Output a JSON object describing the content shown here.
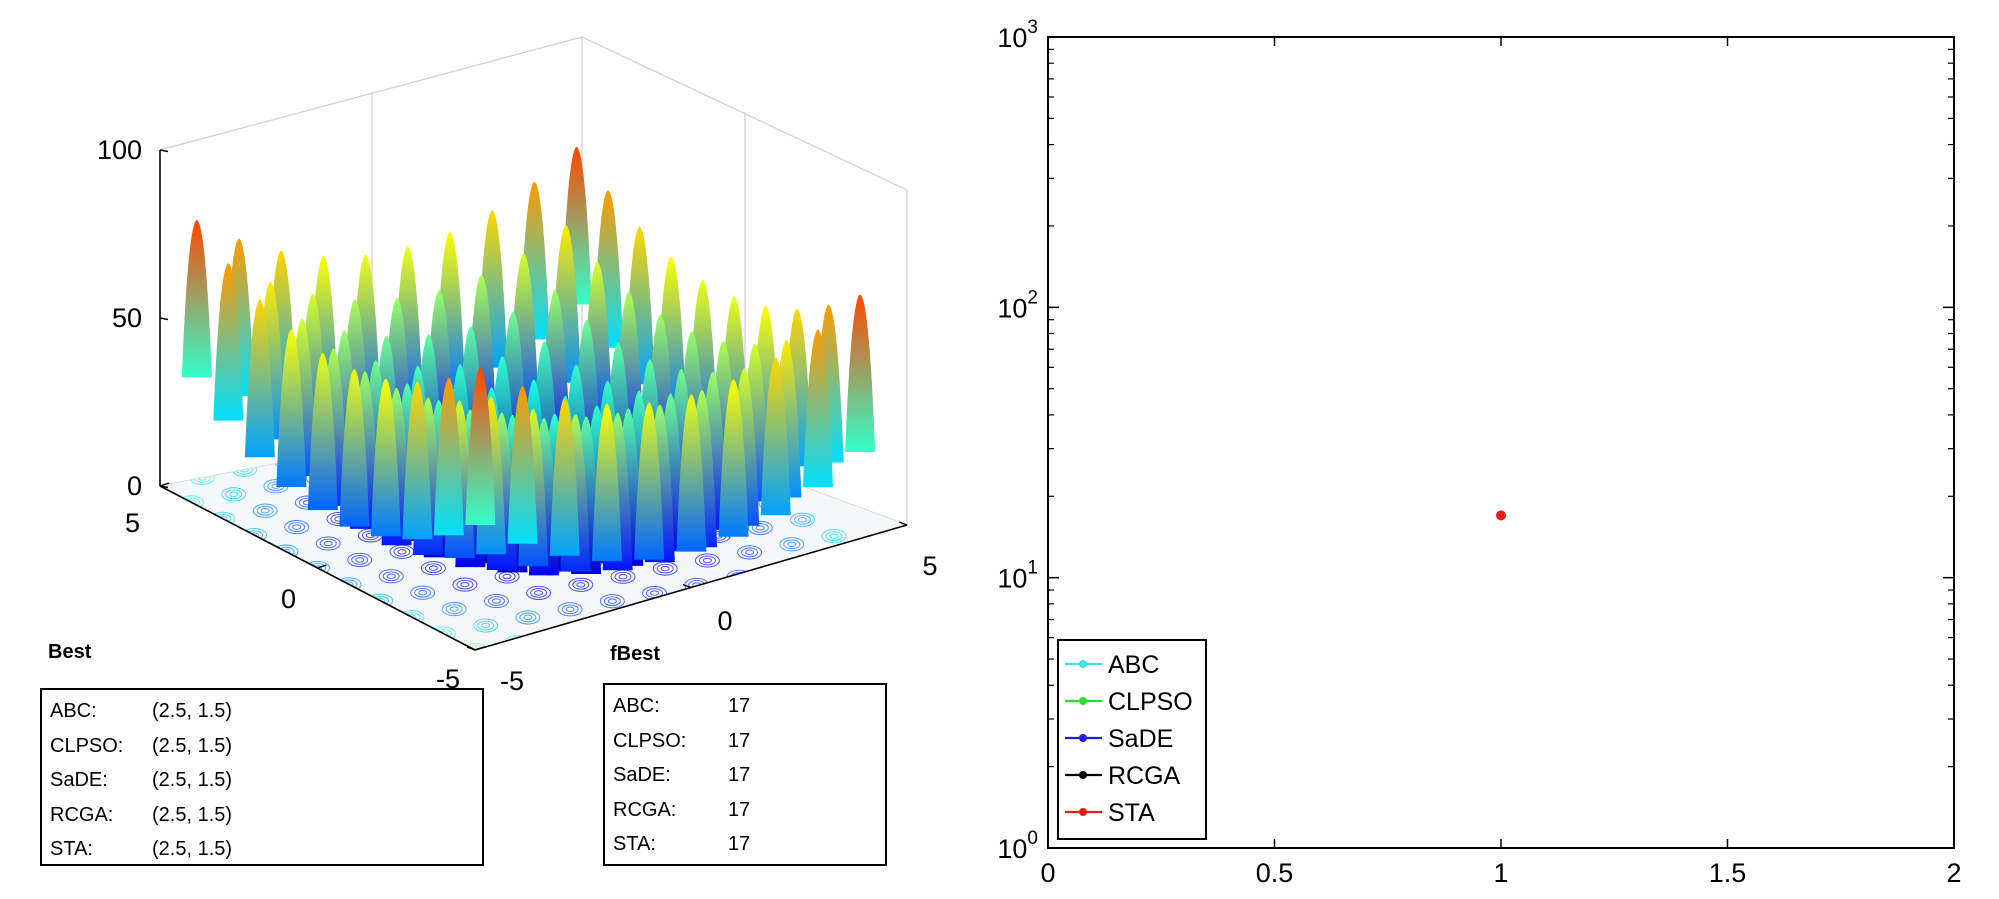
{
  "best_panel": {
    "title": "Best",
    "rows": [
      {
        "label": "ABC:",
        "value": "(2.5,  1.5)"
      },
      {
        "label": "CLPSO:",
        "value": "(2.5,  1.5)"
      },
      {
        "label": "SaDE:",
        "value": "(2.5,  1.5)"
      },
      {
        "label": "RCGA:",
        "value": "(2.5,  1.5)"
      },
      {
        "label": "STA:",
        "value": "(2.5,  1.5)"
      }
    ]
  },
  "fbest_panel": {
    "title": "fBest",
    "rows": [
      {
        "label": "ABC:",
        "value": "17"
      },
      {
        "label": "CLPSO:",
        "value": "17"
      },
      {
        "label": "SaDE:",
        "value": "17"
      },
      {
        "label": "RCGA:",
        "value": "17"
      },
      {
        "label": "STA:",
        "value": "17"
      }
    ]
  },
  "chart_data": [
    {
      "type": "surface",
      "title": "",
      "xlabel": "",
      "ylabel": "",
      "zlabel": "",
      "xlim": [
        -5,
        5
      ],
      "ylim": [
        -5,
        5
      ],
      "zlim": [
        0,
        100
      ],
      "z_ticks": [
        "0",
        "50",
        "100"
      ],
      "y_ticks": [
        "5",
        "0",
        "-5"
      ],
      "x_ticks": [
        "-5",
        "0",
        "5"
      ],
      "colormap": "jet",
      "contour_on_floor": true
    },
    {
      "type": "line",
      "title": "",
      "xlabel": "",
      "ylabel": "",
      "xlim": [
        0,
        2
      ],
      "ylim": [
        1,
        1000
      ],
      "y_scale": "log",
      "x_ticks": [
        "0",
        "0.5",
        "1",
        "1.5",
        "2"
      ],
      "y_tick_base": "10",
      "y_tick_exponents": [
        "0",
        "1",
        "2",
        "3"
      ],
      "legend_position": "bottom-left",
      "series": [
        {
          "name": "ABC",
          "color": "#3fe0e8",
          "points": []
        },
        {
          "name": "CLPSO",
          "color": "#2ee02e",
          "points": []
        },
        {
          "name": "SaDE",
          "color": "#1f1fd1",
          "points": []
        },
        {
          "name": "RCGA",
          "color": "#000000",
          "points": []
        },
        {
          "name": "STA",
          "color": "#e0201a",
          "points": [
            [
              1,
              17
            ]
          ]
        }
      ]
    }
  ]
}
